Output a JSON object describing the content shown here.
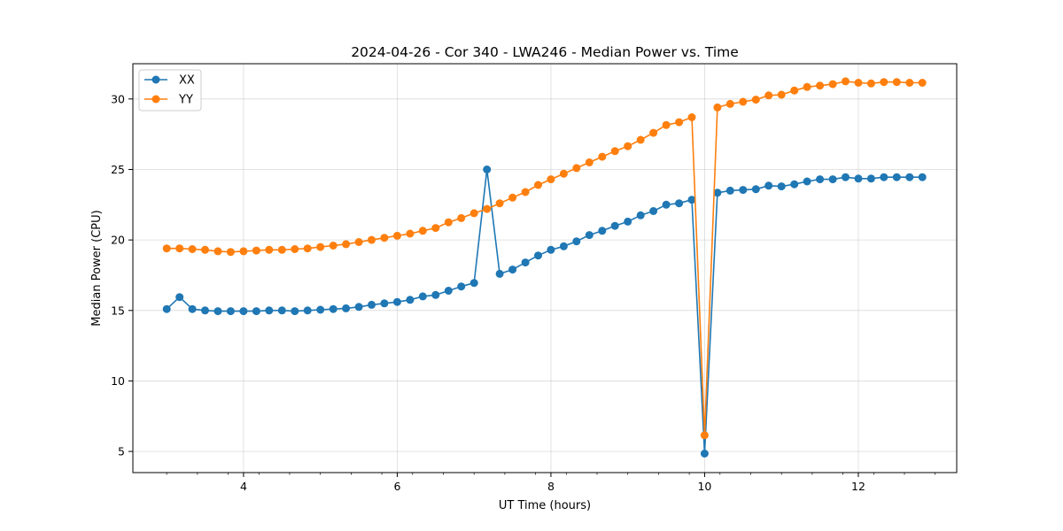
{
  "chart_data": {
    "type": "line",
    "title": "2024-04-26 - Cor 340 - LWA246 - Median Power vs. Time",
    "xlabel": "UT Time (hours)",
    "ylabel": "Median Power (CPU)",
    "xlim": [
      2.56,
      13.28
    ],
    "ylim": [
      3.5,
      32.5
    ],
    "xticks": [
      4,
      6,
      8,
      10,
      12
    ],
    "xtick_labels": [
      "4",
      "6",
      "8",
      "10",
      "12"
    ],
    "yticks": [
      5,
      10,
      15,
      20,
      25,
      30
    ],
    "ytick_labels": [
      "5",
      "10",
      "15",
      "20",
      "25",
      "30"
    ],
    "grid": true,
    "legend": "top-left",
    "x": [
      3.0,
      3.167,
      3.333,
      3.5,
      3.667,
      3.833,
      4.0,
      4.167,
      4.333,
      4.5,
      4.667,
      4.833,
      5.0,
      5.167,
      5.333,
      5.5,
      5.667,
      5.833,
      6.0,
      6.167,
      6.333,
      6.5,
      6.667,
      6.833,
      7.0,
      7.167,
      7.333,
      7.5,
      7.667,
      7.833,
      8.0,
      8.167,
      8.333,
      8.5,
      8.667,
      8.833,
      9.0,
      9.167,
      9.333,
      9.5,
      9.667,
      9.833,
      10.0,
      10.167,
      10.333,
      10.5,
      10.667,
      10.833,
      11.0,
      11.167,
      11.333,
      11.5,
      11.667,
      11.833,
      12.0,
      12.167,
      12.333,
      12.5,
      12.667,
      12.833
    ],
    "series": [
      {
        "name": "XX",
        "color": "#1f77b4",
        "values": [
          15.1,
          15.95,
          15.1,
          15.0,
          14.95,
          14.95,
          14.95,
          14.95,
          15.0,
          15.0,
          14.95,
          15.0,
          15.05,
          15.1,
          15.15,
          15.25,
          15.4,
          15.5,
          15.6,
          15.75,
          16.0,
          16.1,
          16.4,
          16.7,
          16.95,
          25.0,
          17.6,
          17.9,
          18.4,
          18.9,
          19.3,
          19.55,
          19.9,
          20.35,
          20.65,
          21.0,
          21.3,
          21.75,
          22.05,
          22.5,
          22.6,
          22.85,
          4.85,
          23.35,
          23.5,
          23.55,
          23.6,
          23.85,
          23.8,
          23.95,
          24.15,
          24.3,
          24.3,
          24.45,
          24.35,
          24.35,
          24.45,
          24.45,
          24.45,
          24.45
        ]
      },
      {
        "name": "YY",
        "color": "#ff7f0e",
        "values": [
          19.4,
          19.4,
          19.35,
          19.3,
          19.2,
          19.15,
          19.2,
          19.25,
          19.3,
          19.3,
          19.35,
          19.4,
          19.5,
          19.6,
          19.7,
          19.85,
          20.0,
          20.15,
          20.3,
          20.45,
          20.65,
          20.85,
          21.25,
          21.55,
          21.9,
          22.2,
          22.6,
          23.0,
          23.4,
          23.9,
          24.3,
          24.7,
          25.1,
          25.5,
          25.9,
          26.3,
          26.65,
          27.1,
          27.6,
          28.15,
          28.35,
          28.7,
          6.15,
          29.4,
          29.65,
          29.8,
          29.95,
          30.25,
          30.3,
          30.6,
          30.85,
          30.95,
          31.05,
          31.25,
          31.15,
          31.1,
          31.2,
          31.2,
          31.15,
          31.15
        ]
      }
    ]
  }
}
